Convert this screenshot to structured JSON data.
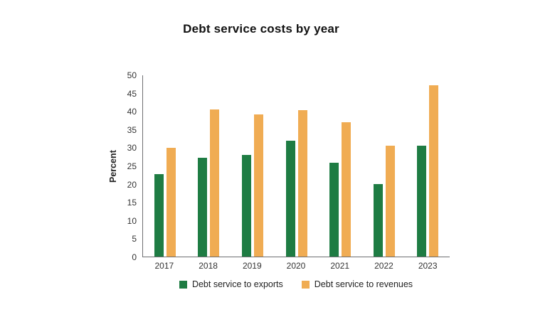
{
  "chart_data": {
    "type": "bar",
    "title": "Debt service costs by year",
    "xlabel": "",
    "ylabel": "Percent",
    "categories": [
      "2017",
      "2018",
      "2019",
      "2020",
      "2021",
      "2022",
      "2023"
    ],
    "series": [
      {
        "name": "Debt service to exports",
        "color": "#1e7c43",
        "values": [
          22.8,
          27.3,
          28.0,
          32.0,
          25.8,
          20.0,
          30.5
        ]
      },
      {
        "name": "Debt service to revenues",
        "color": "#f0ac53",
        "values": [
          30.0,
          40.5,
          39.2,
          40.3,
          37.0,
          30.5,
          47.3
        ]
      }
    ],
    "ylim": [
      0,
      50
    ],
    "yticks": [
      0,
      5,
      10,
      15,
      20,
      25,
      30,
      35,
      40,
      45,
      50
    ],
    "grid": false,
    "legend_position": "bottom",
    "axis_color": "#6d6e71",
    "background": "#ffffff"
  }
}
